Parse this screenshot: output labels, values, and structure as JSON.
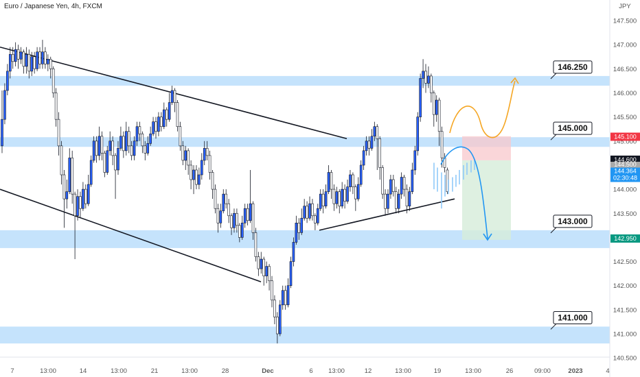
{
  "header": {
    "symbol_title": "Euro / Japanese Yen, 4h, FXCM",
    "currency": "JPY"
  },
  "chart_data": {
    "type": "candlestick",
    "title": "Euro / Japanese Yen, 4h, FXCM",
    "y_axis_unit": "JPY",
    "ylim": [
      140.3,
      147.8
    ],
    "y_ticks": [
      "147.500",
      "147.000",
      "146.500",
      "146.000",
      "145.500",
      "145.000",
      "144.500",
      "144.000",
      "143.500",
      "143.000",
      "142.500",
      "142.000",
      "141.500",
      "141.000",
      "140.500"
    ],
    "x_ticks": [
      "7",
      "13:00",
      "14",
      "13:00",
      "21",
      "13:00",
      "28",
      "Dec",
      "6",
      "13:00",
      "12",
      "13:00",
      "19",
      "13:00",
      "26",
      "09:00",
      "2023",
      "4"
    ],
    "zones": [
      {
        "label": "146.250",
        "low": 146.15,
        "high": 146.35
      },
      {
        "label": "145.000",
        "low": 144.88,
        "high": 145.08
      },
      {
        "label": "143.000",
        "low": 142.78,
        "high": 143.15
      },
      {
        "label": "141.000",
        "low": 140.8,
        "high": 141.15
      }
    ],
    "price_tags": [
      {
        "label": "145.100",
        "value": 145.1,
        "color": "#f23645"
      },
      {
        "label": "144.600",
        "value": 144.6,
        "color": "#131722"
      },
      {
        "label": "144.500",
        "value": 144.5,
        "color": "#aaaaaa"
      },
      {
        "label": "144.364",
        "value": 144.364,
        "color": "#2196f3"
      },
      {
        "label": "02:30:48",
        "value": 144.2,
        "color": "#2196f3"
      },
      {
        "label": "142.950",
        "value": 142.95,
        "color": "#089981"
      }
    ],
    "trendlines": [
      {
        "from": [
          0,
          146.95
        ],
        "to": [
          505,
          145.05
        ]
      },
      {
        "from": [
          0,
          144.0
        ],
        "to": [
          380,
          142.08
        ]
      },
      {
        "from": [
          465,
          143.15
        ],
        "to": [
          662,
          143.8
        ]
      }
    ],
    "position": {
      "entry": 144.6,
      "stop": 145.1,
      "target": 142.95
    },
    "candles": [
      [
        144.9,
        145.45,
        146.05,
        144.75
      ],
      [
        145.45,
        146.05,
        146.2,
        145.35
      ],
      [
        146.05,
        146.45,
        146.6,
        145.95
      ],
      [
        146.45,
        146.8,
        146.95,
        146.3
      ],
      [
        146.8,
        146.65,
        146.95,
        146.5
      ],
      [
        146.65,
        146.9,
        147.05,
        146.55
      ],
      [
        146.9,
        146.7,
        147.0,
        146.5
      ],
      [
        146.7,
        146.85,
        146.95,
        146.6
      ],
      [
        146.85,
        146.55,
        146.9,
        146.4
      ],
      [
        146.55,
        146.8,
        146.95,
        146.4
      ],
      [
        146.8,
        146.45,
        146.9,
        146.3
      ],
      [
        146.45,
        146.75,
        146.85,
        146.35
      ],
      [
        146.75,
        146.5,
        146.85,
        146.4
      ],
      [
        146.5,
        146.85,
        146.95,
        146.45
      ],
      [
        146.85,
        146.6,
        146.95,
        146.5
      ],
      [
        146.6,
        146.85,
        147.1,
        146.5
      ],
      [
        146.85,
        146.6,
        146.95,
        146.5
      ],
      [
        146.6,
        146.7,
        146.8,
        146.45
      ],
      [
        146.7,
        146.5,
        146.75,
        146.3
      ],
      [
        146.5,
        146.0,
        146.55,
        145.9
      ],
      [
        146.0,
        145.45,
        146.1,
        145.3
      ],
      [
        145.45,
        144.9,
        145.6,
        144.7
      ],
      [
        144.9,
        144.3,
        145.0,
        144.1
      ],
      [
        144.3,
        143.8,
        144.4,
        143.2
      ],
      [
        143.8,
        143.95,
        144.2,
        143.6
      ],
      [
        143.95,
        144.65,
        144.85,
        143.9
      ],
      [
        144.65,
        143.9,
        144.8,
        143.7
      ],
      [
        143.9,
        143.45,
        143.95,
        142.55
      ],
      [
        143.45,
        143.85,
        144.0,
        143.35
      ],
      [
        143.85,
        143.6,
        143.95,
        143.4
      ],
      [
        143.6,
        144.0,
        144.15,
        143.55
      ],
      [
        144.0,
        143.7,
        144.1,
        143.6
      ],
      [
        143.7,
        144.1,
        144.3,
        143.65
      ],
      [
        144.1,
        144.6,
        144.7,
        144.05
      ],
      [
        144.6,
        145.0,
        145.1,
        144.55
      ],
      [
        145.0,
        144.7,
        145.1,
        144.55
      ],
      [
        144.7,
        145.1,
        145.3,
        144.6
      ],
      [
        145.1,
        144.75,
        145.2,
        144.6
      ],
      [
        144.75,
        144.35,
        144.8,
        144.25
      ],
      [
        144.35,
        144.8,
        144.9,
        144.3
      ],
      [
        144.8,
        145.0,
        145.2,
        144.7
      ],
      [
        145.0,
        144.7,
        145.1,
        144.5
      ],
      [
        144.7,
        144.4,
        144.75,
        143.8
      ],
      [
        144.4,
        144.85,
        145.0,
        144.3
      ],
      [
        144.85,
        145.1,
        145.3,
        144.8
      ],
      [
        145.1,
        144.8,
        145.2,
        144.65
      ],
      [
        144.8,
        145.2,
        145.4,
        144.7
      ],
      [
        145.2,
        144.9,
        145.3,
        144.75
      ],
      [
        144.9,
        144.7,
        145.0,
        144.6
      ],
      [
        144.7,
        145.0,
        145.1,
        144.6
      ],
      [
        145.0,
        145.3,
        145.4,
        144.9
      ],
      [
        145.3,
        145.15,
        145.4,
        145.0
      ],
      [
        145.15,
        144.9,
        145.2,
        144.75
      ],
      [
        144.9,
        144.75,
        145.0,
        144.6
      ],
      [
        144.75,
        144.95,
        145.1,
        144.7
      ],
      [
        144.95,
        145.15,
        145.3,
        144.9
      ],
      [
        145.15,
        145.4,
        145.5,
        145.1
      ],
      [
        145.4,
        145.2,
        145.5,
        145.05
      ],
      [
        145.2,
        145.5,
        145.6,
        145.1
      ],
      [
        145.5,
        145.3,
        145.6,
        145.2
      ],
      [
        145.3,
        145.65,
        145.8,
        145.25
      ],
      [
        145.65,
        145.45,
        145.7,
        145.3
      ],
      [
        145.45,
        145.8,
        146.0,
        145.4
      ],
      [
        145.8,
        146.05,
        146.15,
        145.75
      ],
      [
        146.05,
        145.8,
        146.1,
        145.6
      ],
      [
        145.8,
        145.3,
        145.85,
        145.2
      ],
      [
        145.3,
        144.9,
        145.4,
        144.8
      ],
      [
        144.9,
        144.6,
        145.0,
        144.5
      ],
      [
        144.6,
        144.8,
        144.9,
        144.4
      ],
      [
        144.8,
        144.5,
        144.85,
        144.3
      ],
      [
        144.5,
        144.2,
        144.6,
        144.0
      ],
      [
        144.2,
        144.4,
        144.5,
        143.9
      ],
      [
        144.4,
        144.1,
        144.5,
        144.0
      ],
      [
        144.1,
        144.3,
        144.45,
        144.0
      ],
      [
        144.3,
        144.6,
        144.75,
        144.2
      ],
      [
        144.6,
        144.85,
        145.0,
        144.5
      ],
      [
        144.85,
        144.7,
        145.0,
        144.6
      ],
      [
        144.7,
        144.35,
        144.8,
        144.2
      ],
      [
        144.35,
        144.0,
        144.4,
        143.8
      ],
      [
        144.0,
        143.6,
        144.1,
        143.5
      ],
      [
        143.6,
        143.3,
        143.7,
        143.1
      ],
      [
        143.3,
        143.55,
        143.7,
        143.2
      ],
      [
        143.55,
        143.9,
        144.0,
        143.5
      ],
      [
        143.9,
        143.7,
        144.0,
        143.6
      ],
      [
        143.7,
        143.45,
        143.8,
        143.3
      ],
      [
        143.45,
        143.2,
        143.5,
        143.05
      ],
      [
        143.2,
        143.5,
        143.6,
        143.1
      ],
      [
        143.5,
        143.25,
        143.6,
        143.1
      ],
      [
        143.25,
        143.0,
        143.3,
        142.9
      ],
      [
        143.0,
        143.3,
        143.45,
        142.95
      ],
      [
        143.3,
        143.6,
        143.7,
        143.2
      ],
      [
        143.6,
        143.35,
        143.7,
        143.25
      ],
      [
        143.35,
        143.7,
        144.4,
        143.3
      ],
      [
        143.7,
        143.1,
        143.75,
        142.95
      ],
      [
        143.1,
        142.6,
        143.2,
        142.5
      ],
      [
        142.6,
        142.35,
        142.7,
        142.2
      ],
      [
        142.35,
        142.55,
        142.7,
        142.25
      ],
      [
        142.55,
        142.2,
        142.6,
        142.0
      ],
      [
        142.2,
        142.4,
        142.5,
        142.05
      ],
      [
        142.4,
        142.1,
        142.45,
        141.9
      ],
      [
        142.1,
        141.7,
        142.2,
        141.55
      ],
      [
        141.7,
        141.35,
        141.8,
        141.2
      ],
      [
        141.35,
        141.0,
        141.45,
        140.8
      ],
      [
        141.0,
        141.6,
        141.7,
        140.95
      ],
      [
        141.6,
        141.9,
        142.0,
        141.5
      ],
      [
        141.9,
        141.6,
        142.0,
        141.5
      ],
      [
        141.6,
        142.0,
        142.15,
        141.55
      ],
      [
        142.0,
        142.5,
        142.6,
        141.95
      ],
      [
        142.5,
        142.9,
        143.0,
        142.4
      ],
      [
        142.9,
        143.3,
        143.45,
        142.85
      ],
      [
        143.3,
        143.1,
        143.4,
        142.95
      ],
      [
        143.1,
        143.4,
        143.6,
        143.05
      ],
      [
        143.4,
        143.65,
        143.8,
        143.35
      ],
      [
        143.65,
        143.4,
        143.75,
        143.3
      ],
      [
        143.4,
        143.7,
        143.85,
        143.35
      ],
      [
        143.7,
        143.45,
        143.8,
        143.35
      ],
      [
        143.45,
        143.3,
        143.5,
        143.15
      ],
      [
        143.3,
        143.6,
        143.7,
        143.25
      ],
      [
        143.6,
        143.9,
        144.0,
        143.55
      ],
      [
        143.9,
        143.65,
        144.0,
        143.5
      ],
      [
        143.65,
        143.95,
        144.1,
        143.6
      ],
      [
        143.95,
        144.35,
        144.5,
        143.9
      ],
      [
        144.35,
        144.0,
        144.4,
        143.8
      ],
      [
        144.0,
        143.7,
        144.1,
        143.55
      ],
      [
        143.7,
        143.95,
        144.05,
        143.6
      ],
      [
        143.95,
        143.65,
        144.0,
        143.5
      ],
      [
        143.65,
        144.0,
        144.15,
        143.6
      ],
      [
        144.0,
        143.75,
        144.1,
        143.6
      ],
      [
        143.75,
        144.05,
        144.2,
        143.7
      ],
      [
        144.05,
        144.3,
        144.4,
        143.95
      ],
      [
        144.3,
        144.05,
        144.35,
        143.9
      ],
      [
        144.05,
        143.8,
        144.1,
        143.55
      ],
      [
        143.8,
        144.1,
        144.25,
        143.75
      ],
      [
        144.1,
        144.5,
        144.6,
        144.05
      ],
      [
        144.5,
        144.8,
        144.9,
        144.4
      ],
      [
        144.8,
        145.0,
        145.1,
        144.7
      ],
      [
        145.0,
        144.85,
        145.1,
        144.7
      ],
      [
        144.85,
        145.1,
        145.25,
        144.8
      ],
      [
        145.1,
        145.3,
        145.4,
        145.0
      ],
      [
        145.3,
        145.05,
        145.35,
        144.4
      ],
      [
        145.05,
        144.45,
        145.1,
        144.2
      ],
      [
        144.45,
        143.9,
        144.5,
        143.8
      ],
      [
        143.9,
        143.6,
        144.0,
        143.45
      ],
      [
        143.6,
        143.9,
        144.0,
        143.5
      ],
      [
        143.9,
        144.2,
        144.3,
        143.8
      ],
      [
        144.2,
        143.95,
        144.3,
        143.85
      ],
      [
        143.95,
        143.6,
        144.05,
        143.5
      ],
      [
        143.6,
        143.9,
        144.0,
        143.5
      ],
      [
        143.9,
        144.25,
        144.35,
        143.8
      ],
      [
        144.25,
        144.0,
        144.3,
        143.85
      ],
      [
        144.0,
        143.65,
        144.1,
        143.5
      ],
      [
        143.65,
        143.95,
        144.05,
        143.55
      ],
      [
        143.95,
        144.4,
        144.55,
        143.9
      ],
      [
        144.4,
        144.8,
        144.9,
        144.3
      ],
      [
        144.8,
        145.5,
        145.6,
        144.7
      ],
      [
        145.5,
        146.3,
        146.4,
        145.4
      ],
      [
        146.3,
        146.45,
        146.7,
        146.1
      ],
      [
        146.45,
        146.2,
        146.6,
        146.0
      ],
      [
        146.2,
        146.35,
        146.55,
        146.1
      ],
      [
        146.35,
        146.0,
        146.4,
        145.8
      ],
      [
        146.0,
        145.55,
        146.05,
        145.3
      ],
      [
        145.55,
        145.85,
        145.95,
        145.4
      ],
      [
        145.85,
        145.2,
        145.9,
        144.9
      ],
      [
        145.2,
        144.65,
        145.3,
        144.45
      ],
      [
        144.65,
        144.45,
        144.75,
        144.35
      ],
      [
        144.4,
        143.95,
        144.45,
        143.9
      ]
    ]
  }
}
